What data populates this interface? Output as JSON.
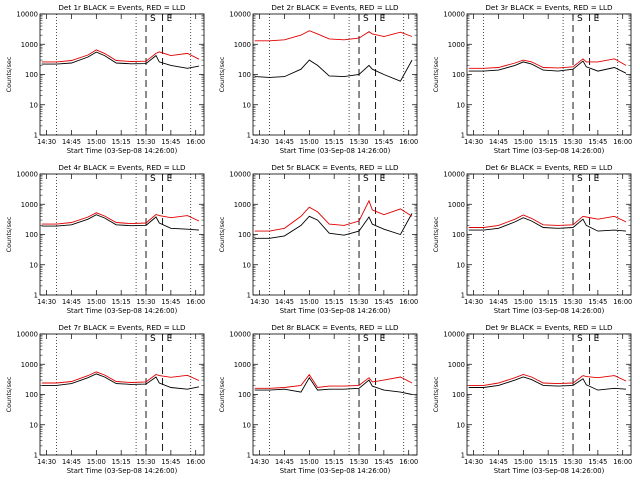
{
  "figure": {
    "tick_labels_y": [
      "1",
      "10",
      "100",
      "1000",
      "10000"
    ],
    "tick_labels_x": [
      "14:30",
      "14:45",
      "15:00",
      "15:15",
      "15:30",
      "15:45",
      "16:00"
    ],
    "series_colors": {
      "events": "#000000",
      "lld": "#e00000"
    }
  },
  "chart_data": [
    {
      "type": "line",
      "title": "Det 1r BLACK = Events, RED = LLD",
      "xlabel": "Start Time (03-Sep-08 14:26:00)",
      "ylabel": "Counts/sec",
      "y_scale": "log",
      "ylim": [
        1,
        10000
      ],
      "xlim": [
        "14:26",
        "16:05"
      ],
      "markers": [
        "S",
        "E"
      ],
      "x": [
        "14:27",
        "14:36",
        "14:45",
        "14:55",
        "15:00",
        "15:05",
        "15:12",
        "15:21",
        "15:30",
        "15:36",
        "15:38",
        "15:45",
        "15:55",
        "16:02"
      ],
      "series": [
        {
          "values": [
            220,
            220,
            240,
            380,
            550,
            420,
            240,
            225,
            230,
            420,
            260,
            200,
            160,
            190
          ]
        },
        {
          "values": [
            260,
            260,
            290,
            440,
            650,
            500,
            290,
            270,
            275,
            500,
            560,
            420,
            500,
            320
          ]
        }
      ]
    },
    {
      "type": "line",
      "title": "Det 2r BLACK = Events, RED = LLD",
      "xlabel": "Start Time (03-Sep-08 14:26:00)",
      "ylabel": "Counts/sec",
      "y_scale": "log",
      "ylim": [
        1,
        10000
      ],
      "xlim": [
        "14:26",
        "16:05"
      ],
      "markers": [
        "S",
        "E"
      ],
      "x": [
        "14:27",
        "14:36",
        "14:45",
        "14:55",
        "15:00",
        "15:05",
        "15:12",
        "15:21",
        "15:30",
        "15:36",
        "15:38",
        "15:45",
        "15:55",
        "16:02"
      ],
      "series": [
        {
          "values": [
            85,
            80,
            85,
            150,
            300,
            200,
            90,
            85,
            100,
            200,
            150,
            100,
            60,
            300
          ]
        },
        {
          "values": [
            1300,
            1300,
            1400,
            2000,
            2800,
            2200,
            1500,
            1400,
            1600,
            2600,
            2200,
            1800,
            2500,
            1800
          ]
        }
      ]
    },
    {
      "type": "line",
      "title": "Det 3r BLACK = Events, RED = LLD",
      "xlabel": "Start Time (03-Sep-08 14:26:00)",
      "ylabel": "Counts/sec",
      "y_scale": "log",
      "ylim": [
        1,
        10000
      ],
      "xlim": [
        "14:26",
        "16:05"
      ],
      "markers": [
        "S",
        "E"
      ],
      "x": [
        "14:27",
        "14:36",
        "14:45",
        "14:55",
        "15:00",
        "15:05",
        "15:12",
        "15:21",
        "15:30",
        "15:36",
        "15:38",
        "15:45",
        "15:55",
        "16:02"
      ],
      "series": [
        {
          "values": [
            130,
            130,
            140,
            200,
            260,
            220,
            140,
            130,
            150,
            280,
            180,
            130,
            170,
            110
          ]
        },
        {
          "values": [
            160,
            160,
            170,
            240,
            300,
            260,
            170,
            165,
            180,
            330,
            260,
            260,
            330,
            200
          ]
        }
      ]
    },
    {
      "type": "line",
      "title": "Det 4r BLACK = Events, RED = LLD",
      "xlabel": "Start Time (03-Sep-08 14:26:00)",
      "ylabel": "Counts/sec",
      "y_scale": "log",
      "ylim": [
        1,
        10000
      ],
      "xlim": [
        "14:26",
        "16:05"
      ],
      "markers": [
        "S",
        "E"
      ],
      "x": [
        "14:27",
        "14:36",
        "14:45",
        "14:55",
        "15:00",
        "15:05",
        "15:12",
        "15:21",
        "15:30",
        "15:36",
        "15:38",
        "15:45",
        "15:55",
        "16:02"
      ],
      "series": [
        {
          "values": [
            190,
            190,
            210,
            320,
            450,
            350,
            210,
            195,
            200,
            380,
            240,
            160,
            150,
            140
          ]
        },
        {
          "values": [
            220,
            220,
            250,
            380,
            520,
            410,
            250,
            230,
            240,
            460,
            420,
            360,
            420,
            280
          ]
        }
      ]
    },
    {
      "type": "line",
      "title": "Det 5r BLACK = Events, RED = LLD",
      "xlabel": "Start Time (03-Sep-08 14:26:00)",
      "ylabel": "Counts/sec",
      "y_scale": "log",
      "ylim": [
        1,
        10000
      ],
      "xlim": [
        "14:26",
        "16:05"
      ],
      "markers": [
        "S",
        "E"
      ],
      "x": [
        "14:27",
        "14:36",
        "14:45",
        "14:55",
        "15:00",
        "15:05",
        "15:12",
        "15:21",
        "15:30",
        "15:36",
        "15:38",
        "15:45",
        "15:55",
        "16:02"
      ],
      "series": [
        {
          "values": [
            75,
            75,
            90,
            200,
            400,
            300,
            110,
            95,
            130,
            380,
            220,
            150,
            100,
            500
          ]
        },
        {
          "values": [
            130,
            130,
            160,
            400,
            800,
            560,
            220,
            200,
            280,
            1300,
            650,
            450,
            700,
            400
          ]
        }
      ]
    },
    {
      "type": "line",
      "title": "Det 6r BLACK = Events, RED = LLD",
      "xlabel": "Start Time (03-Sep-08 14:26:00)",
      "ylabel": "Counts/sec",
      "y_scale": "log",
      "ylim": [
        1,
        10000
      ],
      "xlim": [
        "14:26",
        "16:05"
      ],
      "markers": [
        "S",
        "E"
      ],
      "x": [
        "14:27",
        "14:36",
        "14:45",
        "14:55",
        "15:00",
        "15:05",
        "15:12",
        "15:21",
        "15:30",
        "15:36",
        "15:38",
        "15:45",
        "15:55",
        "16:02"
      ],
      "series": [
        {
          "values": [
            140,
            140,
            160,
            260,
            360,
            280,
            170,
            160,
            170,
            320,
            200,
            130,
            140,
            130
          ]
        },
        {
          "values": [
            170,
            170,
            200,
            320,
            440,
            340,
            210,
            200,
            210,
            400,
            380,
            320,
            400,
            260
          ]
        }
      ]
    },
    {
      "type": "line",
      "title": "Det 7r BLACK = Events, RED = LLD",
      "xlabel": "Start Time (03-Sep-08 14:26:00)",
      "ylabel": "Counts/sec",
      "y_scale": "log",
      "ylim": [
        1,
        10000
      ],
      "xlim": [
        "14:26",
        "16:05"
      ],
      "markers": [
        "S",
        "E"
      ],
      "x": [
        "14:27",
        "14:36",
        "14:45",
        "14:55",
        "15:00",
        "15:05",
        "15:12",
        "15:21",
        "15:30",
        "15:36",
        "15:38",
        "15:45",
        "15:55",
        "16:02"
      ],
      "series": [
        {
          "values": [
            200,
            200,
            230,
            360,
            480,
            380,
            230,
            215,
            220,
            380,
            240,
            170,
            150,
            180
          ]
        },
        {
          "values": [
            240,
            240,
            270,
            420,
            560,
            440,
            270,
            250,
            260,
            460,
            420,
            370,
            430,
            290
          ]
        }
      ]
    },
    {
      "type": "line",
      "title": "Det 8r BLACK = Events, RED = LLD",
      "xlabel": "Start Time (03-Sep-08 14:26:00)",
      "ylabel": "Counts/sec",
      "y_scale": "log",
      "ylim": [
        1,
        10000
      ],
      "xlim": [
        "14:26",
        "16:05"
      ],
      "markers": [
        "S",
        "E"
      ],
      "x": [
        "14:27",
        "14:36",
        "14:45",
        "14:55",
        "15:00",
        "15:05",
        "15:12",
        "15:21",
        "15:30",
        "15:36",
        "15:38",
        "15:45",
        "15:55",
        "16:02"
      ],
      "series": [
        {
          "values": [
            140,
            140,
            150,
            120,
            360,
            140,
            150,
            150,
            160,
            300,
            190,
            140,
            120,
            100
          ]
        },
        {
          "values": [
            160,
            160,
            170,
            200,
            450,
            170,
            190,
            190,
            200,
            360,
            260,
            300,
            380,
            240
          ]
        }
      ]
    },
    {
      "type": "line",
      "title": "Det 9r BLACK = Events, RED = LLD",
      "xlabel": "Start Time (03-Sep-08 14:26:00)",
      "ylabel": "Counts/sec",
      "y_scale": "log",
      "ylim": [
        1,
        10000
      ],
      "xlim": [
        "14:26",
        "16:05"
      ],
      "markers": [
        "S",
        "E"
      ],
      "x": [
        "14:27",
        "14:36",
        "14:45",
        "14:55",
        "15:00",
        "15:05",
        "15:12",
        "15:21",
        "15:30",
        "15:36",
        "15:38",
        "15:45",
        "15:55",
        "16:02"
      ],
      "series": [
        {
          "values": [
            170,
            170,
            200,
            300,
            380,
            310,
            200,
            190,
            200,
            330,
            210,
            140,
            160,
            150
          ]
        },
        {
          "values": [
            200,
            200,
            240,
            360,
            460,
            380,
            240,
            230,
            240,
            420,
            390,
            360,
            420,
            280
          ]
        }
      ]
    }
  ]
}
